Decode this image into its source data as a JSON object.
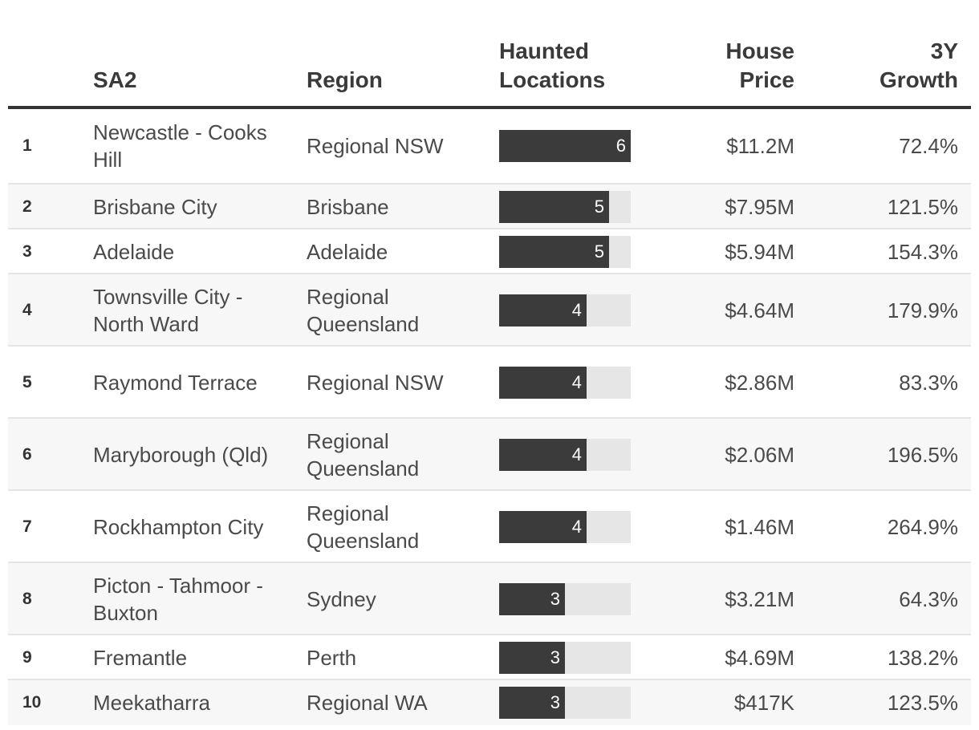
{
  "columns": {
    "sa2": "SA2",
    "region": "Region",
    "haunted_line1": "Haunted",
    "haunted_line2": "Locations",
    "price_line1": "House",
    "price_line2": "Price",
    "growth_line1": "3Y",
    "growth_line2": "Growth"
  },
  "chart_data": {
    "type": "table",
    "max_haunted": 6,
    "rows": [
      {
        "rank": "1",
        "sa2": "Newcastle - Cooks Hill",
        "region": "Regional NSW",
        "haunted": 6,
        "haunted_label": "6",
        "price": "$11.2M",
        "growth": "72.4%"
      },
      {
        "rank": "2",
        "sa2": "Brisbane City",
        "region": "Brisbane",
        "haunted": 5,
        "haunted_label": "5",
        "price": "$7.95M",
        "growth": "121.5%"
      },
      {
        "rank": "3",
        "sa2": "Adelaide",
        "region": "Adelaide",
        "haunted": 5,
        "haunted_label": "5",
        "price": "$5.94M",
        "growth": "154.3%"
      },
      {
        "rank": "4",
        "sa2": "Townsville City - North Ward",
        "region": "Regional Queensland",
        "haunted": 4,
        "haunted_label": "4",
        "price": "$4.64M",
        "growth": "179.9%"
      },
      {
        "rank": "5",
        "sa2": "Raymond Terrace",
        "region": "Regional NSW",
        "haunted": 4,
        "haunted_label": "4",
        "price": "$2.86M",
        "growth": "83.3%"
      },
      {
        "rank": "6",
        "sa2": "Maryborough (Qld)",
        "region": "Regional Queensland",
        "haunted": 4,
        "haunted_label": "4",
        "price": "$2.06M",
        "growth": "196.5%"
      },
      {
        "rank": "7",
        "sa2": "Rockhampton City",
        "region": "Regional Queensland",
        "haunted": 4,
        "haunted_label": "4",
        "price": "$1.46M",
        "growth": "264.9%"
      },
      {
        "rank": "8",
        "sa2": "Picton - Tahmoor - Buxton",
        "region": "Sydney",
        "haunted": 3,
        "haunted_label": "3",
        "price": "$3.21M",
        "growth": "64.3%"
      },
      {
        "rank": "9",
        "sa2": "Fremantle",
        "region": "Perth",
        "haunted": 3,
        "haunted_label": "3",
        "price": "$4.69M",
        "growth": "138.2%"
      },
      {
        "rank": "10",
        "sa2": "Meekatharra",
        "region": "Regional WA",
        "haunted": 3,
        "haunted_label": "3",
        "price": "$417K",
        "growth": "123.5%"
      }
    ]
  }
}
